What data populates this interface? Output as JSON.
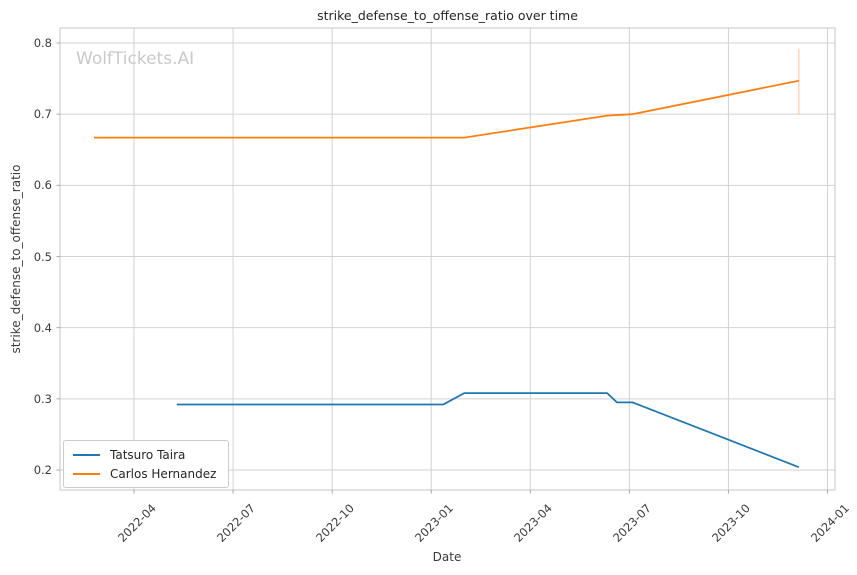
{
  "watermark": "WolfTickets.AI",
  "colors": {
    "tatsuro_line": "#1f77b4",
    "carlos_line": "#ff7f0e",
    "grid": "#d2d2d2",
    "spine": "#c6c6c6",
    "tick": "#a8a8a8",
    "text": "#3b3b3b",
    "watermark": "#c9c9c9",
    "background": "#ffffff"
  },
  "chart_data": {
    "type": "line",
    "title": "strike_defense_to_offense_ratio over time",
    "xlabel": "Date",
    "ylabel": "strike_defense_to_offense_ratio",
    "x_tick_labels": [
      "2022-04",
      "2022-07",
      "2022-10",
      "2023-01",
      "2023-04",
      "2023-07",
      "2023-10",
      "2024-01"
    ],
    "y_tick_labels": [
      "0.2",
      "0.3",
      "0.4",
      "0.5",
      "0.6",
      "0.7",
      "0.8"
    ],
    "y_ticks": [
      0.2,
      0.3,
      0.4,
      0.5,
      0.6,
      0.7,
      0.8
    ],
    "xlim": [
      "2022-01-24",
      "2024-01-08"
    ],
    "ylim": [
      0.172,
      0.822
    ],
    "grid": true,
    "legend_position": "lower left",
    "series": [
      {
        "name": "Tatsuro Taira",
        "color": "#1f77b4",
        "points": [
          [
            "2022-05-10",
            0.292
          ],
          [
            "2023-01-12",
            0.292
          ],
          [
            "2023-02-01",
            0.308
          ],
          [
            "2023-06-11",
            0.308
          ],
          [
            "2023-06-20",
            0.295
          ],
          [
            "2023-07-04",
            0.295
          ],
          [
            "2023-12-05",
            0.204
          ]
        ]
      },
      {
        "name": "Carlos Hernandez",
        "color": "#ff7f0e",
        "points": [
          [
            "2022-02-25",
            0.667
          ],
          [
            "2023-02-01",
            0.667
          ],
          [
            "2023-06-11",
            0.698
          ],
          [
            "2023-07-04",
            0.7
          ],
          [
            "2023-12-05",
            0.747
          ]
        ],
        "error_bar": {
          "date": "2023-12-05",
          "low": 0.7,
          "high": 0.792
        }
      }
    ]
  }
}
